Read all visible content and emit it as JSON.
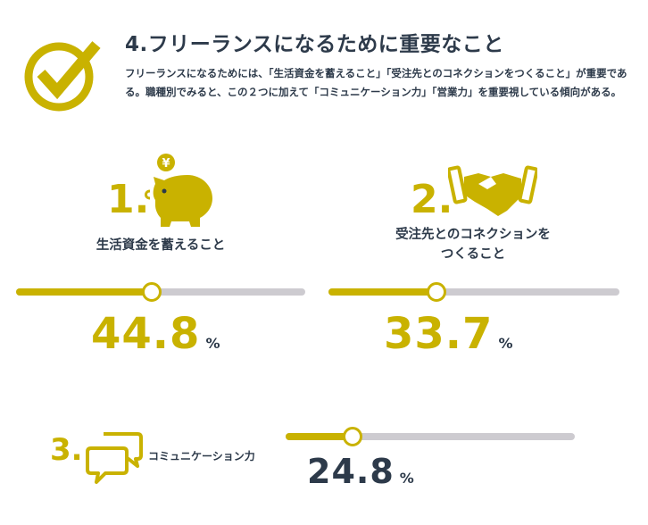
{
  "header": {
    "number": "4.",
    "title": "フリーランスになるために重要なこと",
    "description": "フリーランスになるためには、「生活資金を蓄えること」「受注先とのコネクションをつくること」が重要である。職種別でみると、この２つに加えて「コミュニケーション力」「営業力」を重要視している傾向がある。",
    "icon": "check-circle-icon"
  },
  "colors": {
    "accent": "#c9b200",
    "text": "#2d3a4a",
    "track": "#cdcbd0"
  },
  "items": [
    {
      "rank": "1.",
      "label": "生活資金を蓄えること",
      "value": "44.8",
      "unit": "%",
      "icon": "piggy-bank-icon",
      "badge": "¥",
      "fraction": 0.47
    },
    {
      "rank": "2.",
      "label_line1": "受注先とのコネクションを",
      "label_line2": "つくること",
      "value": "33.7",
      "unit": "%",
      "icon": "handshake-icon",
      "fraction": 0.37
    },
    {
      "rank": "3.",
      "label": "コミュニケーション力",
      "value": "24.8",
      "unit": "%",
      "icon": "chat-bubbles-icon",
      "fraction": 0.23
    }
  ]
}
